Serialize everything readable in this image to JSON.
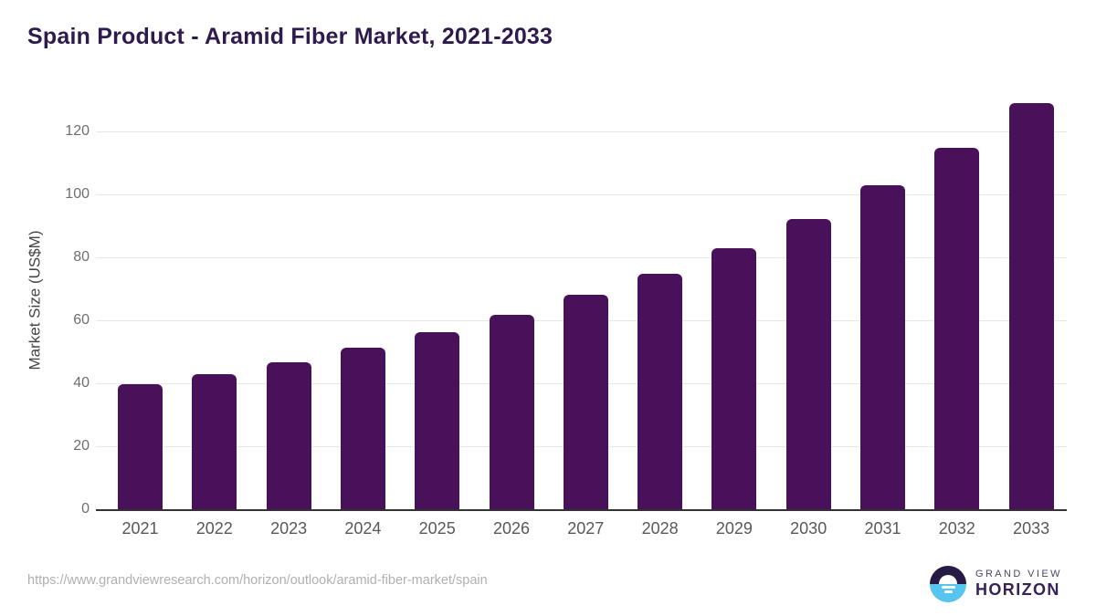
{
  "chart_data": {
    "type": "bar",
    "title": "Spain Product - Aramid Fiber Market, 2021-2033",
    "categories": [
      "2021",
      "2022",
      "2023",
      "2024",
      "2025",
      "2026",
      "2027",
      "2028",
      "2029",
      "2030",
      "2031",
      "2032",
      "2033"
    ],
    "values": [
      39.6,
      42.8,
      46.8,
      51.2,
      56.1,
      61.7,
      68.0,
      74.7,
      82.9,
      92.2,
      102.9,
      114.9,
      129.0
    ],
    "xlabel": "",
    "ylabel": "Market Size (US$M)",
    "ylim": [
      0,
      130
    ],
    "yticks": [
      0,
      20,
      40,
      60,
      80,
      100,
      120
    ],
    "grid": "horizontal",
    "legend": "none",
    "bar_color": "#49115A"
  },
  "footer": {
    "source_url": "https://www.grandviewresearch.com/horizon/outlook/aramid-fiber-market/spain"
  },
  "logo": {
    "line1": "GRAND VIEW",
    "line2": "HORIZON"
  },
  "colors": {
    "title": "#2E1A4D",
    "bar": "#49115A",
    "gridline": "#E8E8E8",
    "axis": "#333333",
    "tick_label": "#6E6E6E",
    "x_label": "#585858",
    "y_axis_title": "#454545",
    "source_url": "#B0B0B0",
    "logo_dark": "#271A44",
    "logo_blue": "#58C4F0",
    "logo_grand_view": "#4A4663",
    "logo_horizon": "#372159"
  }
}
